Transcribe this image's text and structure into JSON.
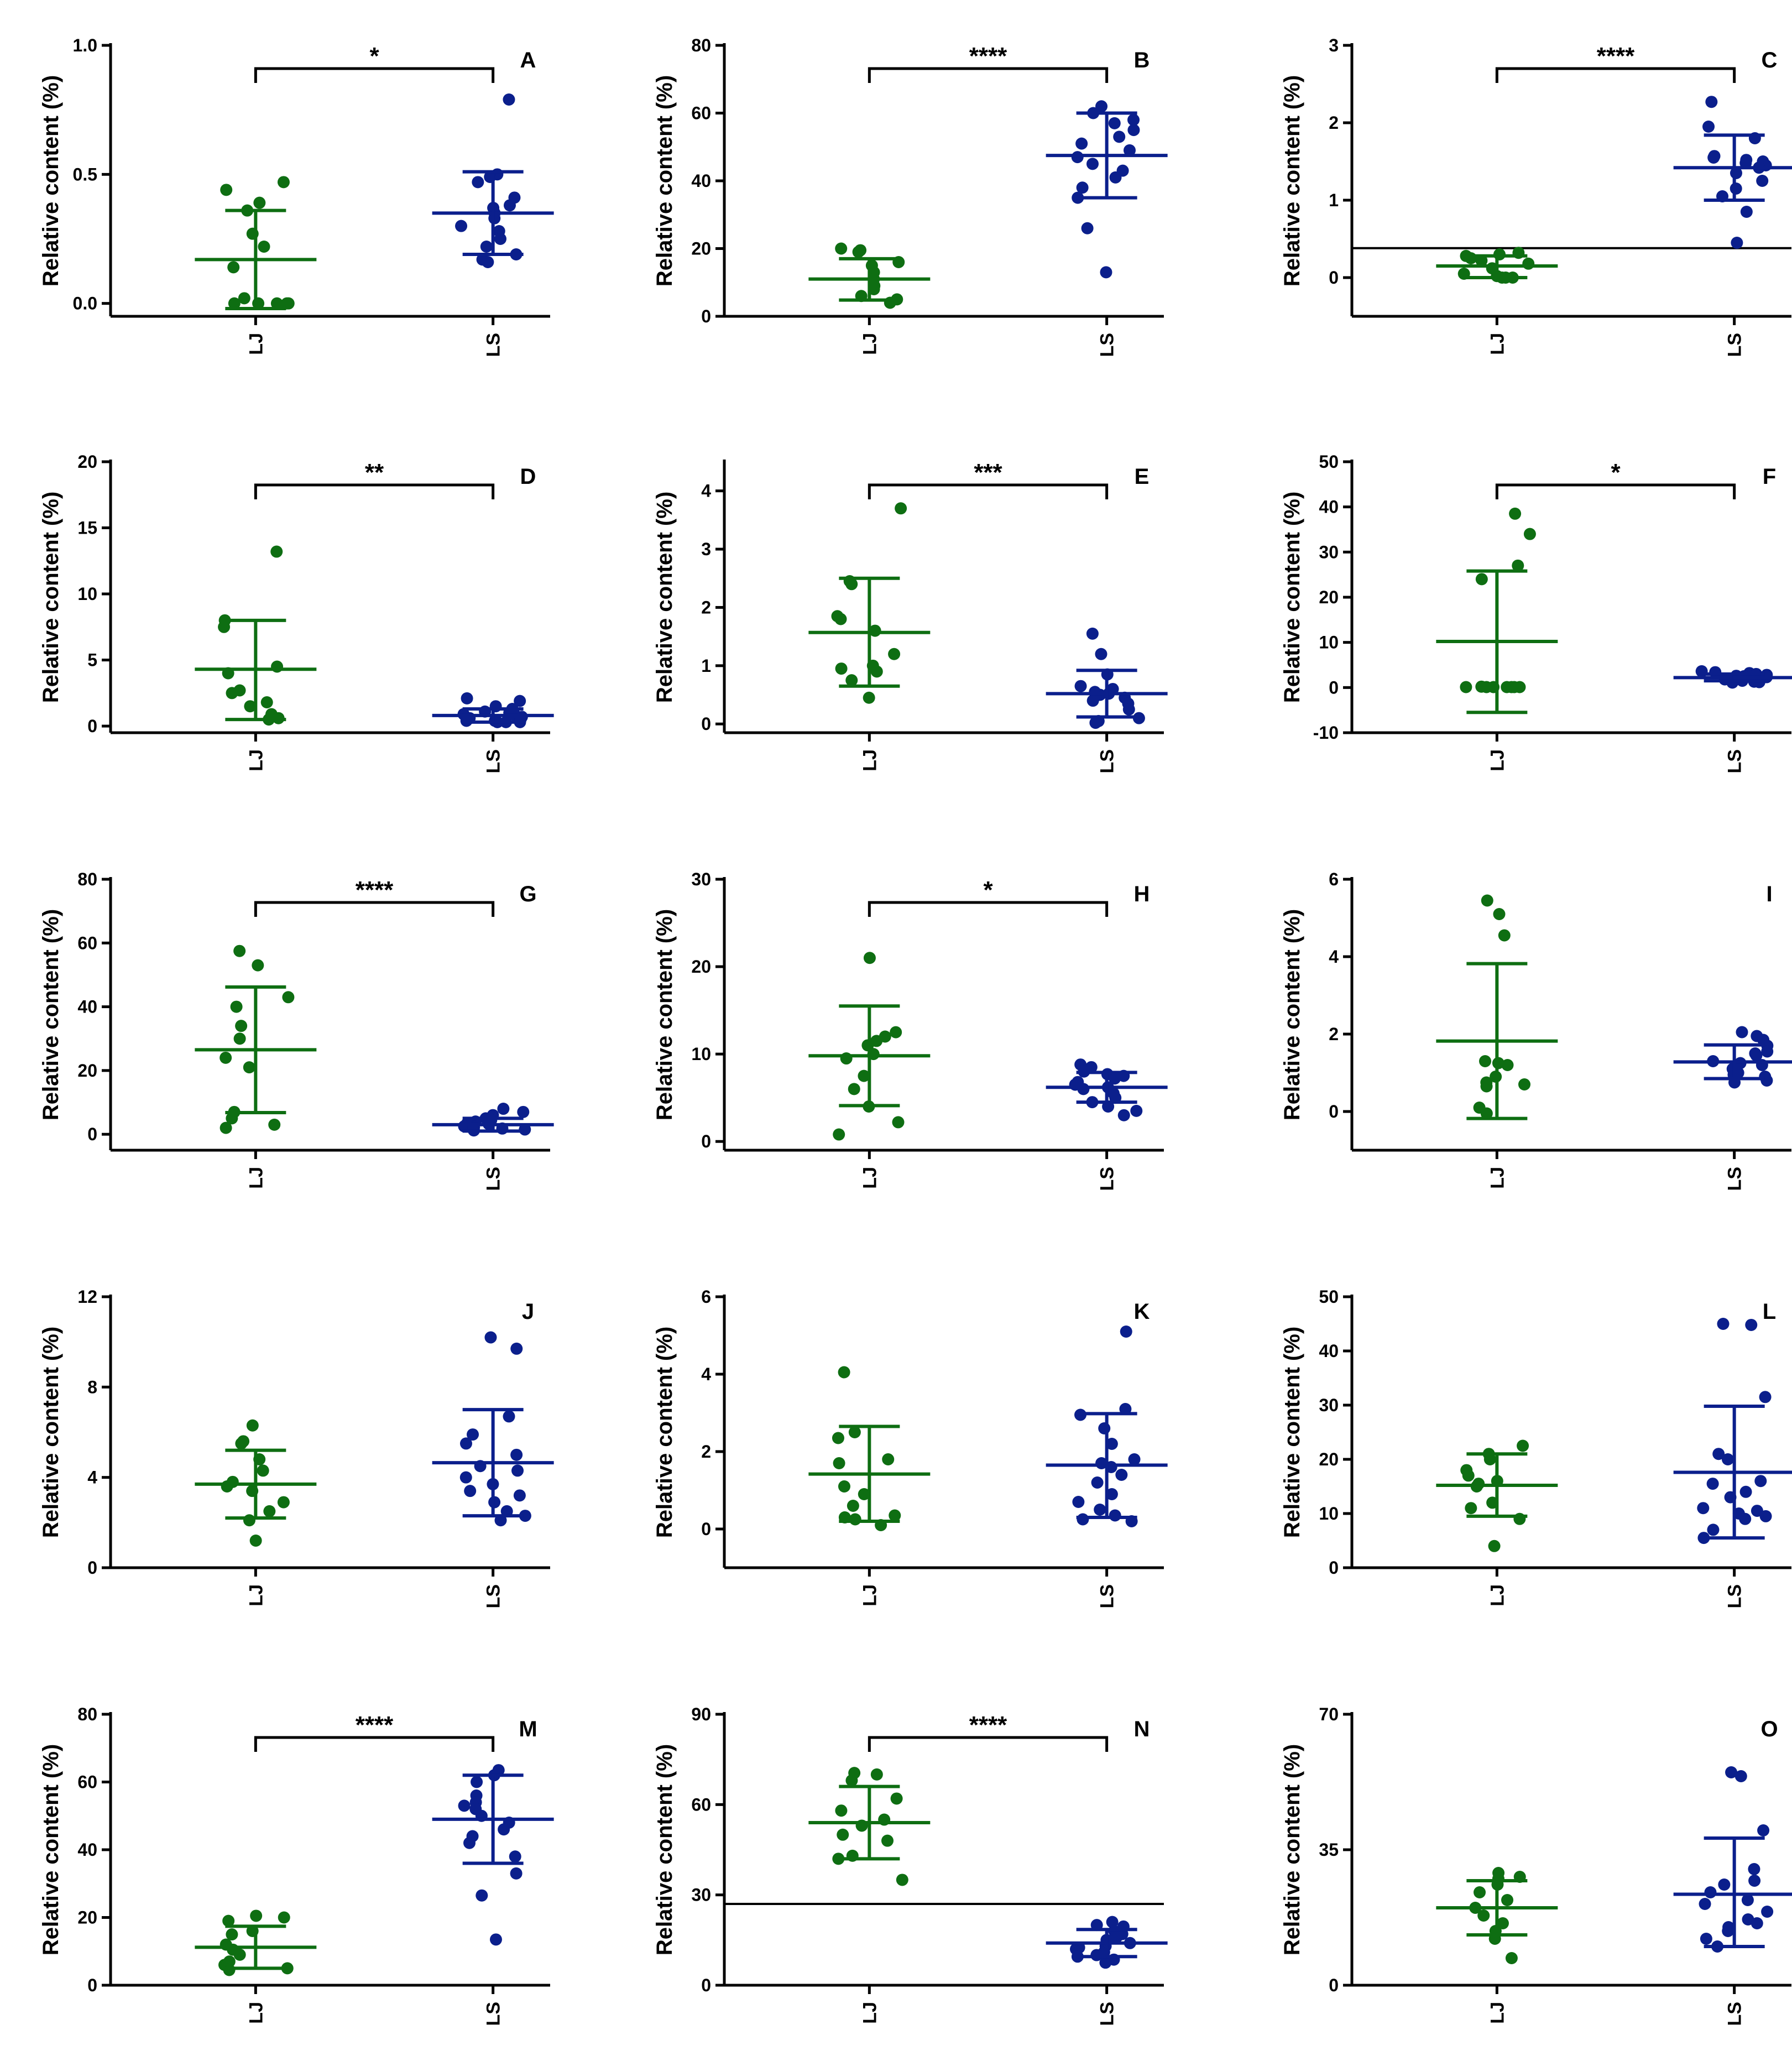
{
  "colors": {
    "LJ": "#0e6e12",
    "LS": "#0b1f8c",
    "axis": "#000000"
  },
  "chart_data": [
    {
      "panel": "A",
      "type": "scatter",
      "ylabel": "Relative content (%)",
      "ylim": [
        -0.05,
        1.0
      ],
      "yticks": [
        0.0,
        0.5,
        1.0
      ],
      "ytick_labels": [
        "0.0",
        "0.5",
        "1.0"
      ],
      "categories": [
        "LJ",
        "LS"
      ],
      "significance": "*",
      "series": [
        {
          "name": "LJ",
          "mean": 0.17,
          "sd_low": -0.02,
          "sd_high": 0.36,
          "values": [
            0.47,
            0.44,
            0.39,
            0.36,
            0.27,
            0.22,
            0.14,
            0.02,
            0.0,
            0.0,
            0.0,
            0.0,
            0.0
          ]
        },
        {
          "name": "LS",
          "mean": 0.35,
          "sd_low": 0.19,
          "sd_high": 0.51,
          "values": [
            0.79,
            0.5,
            0.49,
            0.47,
            0.41,
            0.38,
            0.37,
            0.35,
            0.33,
            0.3,
            0.28,
            0.25,
            0.22,
            0.19,
            0.17,
            0.16
          ]
        }
      ]
    },
    {
      "panel": "B",
      "type": "scatter",
      "ylabel": "Relative content (%)",
      "ylim": [
        0,
        80
      ],
      "yticks": [
        0,
        20,
        40,
        60,
        80
      ],
      "ytick_labels": [
        "0",
        "20",
        "40",
        "60",
        "80"
      ],
      "categories": [
        "LJ",
        "LS"
      ],
      "significance": "****",
      "series": [
        {
          "name": "LJ",
          "mean": 11,
          "sd_low": 4.8,
          "sd_high": 17,
          "values": [
            20,
            19.5,
            19,
            16,
            15,
            13,
            11,
            9,
            8,
            6,
            5,
            4
          ]
        },
        {
          "name": "LS",
          "mean": 47.5,
          "sd_low": 35,
          "sd_high": 60,
          "values": [
            62,
            60,
            58,
            57,
            55,
            53,
            51,
            49,
            47,
            45,
            43,
            41,
            38,
            35,
            26,
            13
          ]
        }
      ]
    },
    {
      "panel": "C",
      "type": "scatter",
      "ylabel": "Relative content (%)",
      "ylim": [
        -0.5,
        3
      ],
      "yticks": [
        0,
        1,
        2,
        3
      ],
      "ytick_labels": [
        "0",
        "1",
        "2",
        "3"
      ],
      "categories": [
        "LJ",
        "LS"
      ],
      "significance": "****",
      "reference_line": 0.38,
      "series": [
        {
          "name": "LJ",
          "mean": 0.15,
          "sd_low": 0.0,
          "sd_high": 0.28,
          "values": [
            0.32,
            0.3,
            0.28,
            0.25,
            0.22,
            0.18,
            0.12,
            0.05,
            0.02,
            0.0,
            0.0,
            0.0
          ]
        },
        {
          "name": "LS",
          "mean": 1.42,
          "sd_low": 1.0,
          "sd_high": 1.84,
          "values": [
            2.27,
            1.95,
            1.8,
            1.57,
            1.55,
            1.52,
            1.5,
            1.48,
            1.45,
            1.42,
            1.35,
            1.25,
            1.15,
            1.05,
            0.85,
            0.45
          ]
        }
      ]
    },
    {
      "panel": "D",
      "type": "scatter",
      "ylabel": "Relative content (%)",
      "ylim": [
        -0.5,
        20
      ],
      "yticks": [
        0,
        5,
        10,
        15,
        20
      ],
      "ytick_labels": [
        "0",
        "5",
        "10",
        "15",
        "20"
      ],
      "categories": [
        "LJ",
        "LS"
      ],
      "significance": "**",
      "series": [
        {
          "name": "LJ",
          "mean": 4.3,
          "sd_low": 0.5,
          "sd_high": 8,
          "values": [
            13.2,
            8,
            7.5,
            4.5,
            4,
            2.7,
            2.5,
            1.8,
            1.5,
            0.9,
            0.6,
            0.5
          ]
        },
        {
          "name": "LS",
          "mean": 0.8,
          "sd_low": 0.3,
          "sd_high": 1.3,
          "values": [
            2.1,
            1.9,
            1.5,
            1.3,
            1.1,
            1.0,
            0.9,
            0.8,
            0.7,
            0.6,
            0.5,
            0.4,
            0.4,
            0.3,
            0.3,
            0.3
          ]
        }
      ]
    },
    {
      "panel": "E",
      "type": "scatter",
      "ylabel": "Relative content (%)",
      "ylim": [
        -0.15,
        4.5
      ],
      "yticks": [
        0,
        1,
        2,
        3,
        4
      ],
      "ytick_labels": [
        "0",
        "1",
        "2",
        "3",
        "4"
      ],
      "categories": [
        "LJ",
        "LS"
      ],
      "significance": "***",
      "series": [
        {
          "name": "LJ",
          "mean": 1.57,
          "sd_low": 0.65,
          "sd_high": 2.5,
          "values": [
            3.7,
            2.45,
            2.4,
            1.85,
            1.8,
            1.6,
            1.2,
            1.0,
            0.95,
            0.9,
            0.75,
            0.45
          ]
        },
        {
          "name": "LS",
          "mean": 0.52,
          "sd_low": 0.12,
          "sd_high": 0.92,
          "values": [
            1.55,
            1.2,
            0.85,
            0.65,
            0.6,
            0.55,
            0.52,
            0.5,
            0.48,
            0.45,
            0.4,
            0.35,
            0.25,
            0.1,
            0.05,
            0.02
          ]
        }
      ]
    },
    {
      "panel": "F",
      "type": "scatter",
      "ylabel": "Relative content (%)",
      "ylim": [
        -10,
        50
      ],
      "yticks": [
        -10,
        0,
        10,
        20,
        30,
        40,
        50
      ],
      "ytick_labels": [
        "-10",
        "0",
        "10",
        "20",
        "30",
        "40",
        "50"
      ],
      "categories": [
        "LJ",
        "LS"
      ],
      "significance": "*",
      "series": [
        {
          "name": "LJ",
          "mean": 10.2,
          "sd_low": -5.5,
          "sd_high": 25.8,
          "values": [
            38.5,
            34,
            27,
            24,
            0.2,
            0.1,
            0.1,
            0.1,
            0.1,
            0.1,
            0.1,
            0.1
          ]
        },
        {
          "name": "LS",
          "mean": 2.2,
          "sd_low": 1.5,
          "sd_high": 3.0,
          "values": [
            3.6,
            3.4,
            3.2,
            3.0,
            2.8,
            2.6,
            2.5,
            2.3,
            2.2,
            2.0,
            1.8,
            1.7,
            1.5,
            1.3,
            1.2,
            1.1
          ]
        }
      ]
    },
    {
      "panel": "G",
      "type": "scatter",
      "ylabel": "Relative content (%)",
      "ylim": [
        -5,
        80
      ],
      "yticks": [
        0,
        20,
        40,
        60,
        80
      ],
      "ytick_labels": [
        "0",
        "20",
        "40",
        "60",
        "80"
      ],
      "categories": [
        "LJ",
        "LS"
      ],
      "significance": "****",
      "series": [
        {
          "name": "LJ",
          "mean": 26.5,
          "sd_low": 6.8,
          "sd_high": 46.2,
          "values": [
            57.5,
            53,
            43,
            40,
            34,
            30,
            24,
            21,
            7,
            5,
            3,
            2
          ]
        },
        {
          "name": "LS",
          "mean": 3.0,
          "sd_low": 1.0,
          "sd_high": 5.0,
          "values": [
            8,
            7,
            6,
            5,
            4.5,
            4,
            3.5,
            3.2,
            3,
            2.8,
            2.5,
            2.2,
            2,
            1.8,
            1.5,
            1.2
          ]
        }
      ]
    },
    {
      "panel": "H",
      "type": "scatter",
      "ylabel": "Relative content (%)",
      "ylim": [
        -1,
        30
      ],
      "yticks": [
        0,
        10,
        20,
        30
      ],
      "ytick_labels": [
        "0",
        "10",
        "20",
        "30"
      ],
      "categories": [
        "LJ",
        "LS"
      ],
      "significance": "*",
      "series": [
        {
          "name": "LJ",
          "mean": 9.8,
          "sd_low": 4.1,
          "sd_high": 15.5,
          "values": [
            21,
            12.5,
            12,
            11.5,
            11,
            10,
            9.5,
            7.5,
            6,
            4,
            2.2,
            0.8
          ]
        },
        {
          "name": "LS",
          "mean": 6.2,
          "sd_low": 4.5,
          "sd_high": 7.9,
          "values": [
            8.8,
            8.5,
            8,
            7.7,
            7.5,
            7.2,
            6.8,
            6.5,
            6.2,
            6,
            5.5,
            5,
            4.5,
            4,
            3.5,
            3
          ]
        }
      ]
    },
    {
      "panel": "I",
      "type": "scatter",
      "ylabel": "Relative content (%)",
      "ylim": [
        -1,
        6
      ],
      "yticks": [
        0,
        2,
        4,
        6
      ],
      "ytick_labels": [
        "0",
        "2",
        "4",
        "6"
      ],
      "categories": [
        "LJ",
        "LS"
      ],
      "series": [
        {
          "name": "LJ",
          "mean": 1.82,
          "sd_low": -0.18,
          "sd_high": 3.82,
          "values": [
            5.45,
            5.1,
            4.55,
            1.3,
            1.25,
            1.2,
            0.9,
            0.75,
            0.7,
            0.65,
            0.1,
            -0.05
          ]
        },
        {
          "name": "LS",
          "mean": 1.28,
          "sd_low": 0.85,
          "sd_high": 1.72,
          "values": [
            2.05,
            1.95,
            1.85,
            1.7,
            1.55,
            1.5,
            1.45,
            1.3,
            1.25,
            1.2,
            1.1,
            1.0,
            0.95,
            0.9,
            0.8,
            0.75
          ]
        }
      ]
    },
    {
      "panel": "J",
      "type": "scatter",
      "ylabel": "Relative content (%)",
      "ylim": [
        0,
        12
      ],
      "yticks": [
        0,
        4,
        8,
        12
      ],
      "ytick_labels": [
        "0",
        "4",
        "8",
        "12"
      ],
      "categories": [
        "LJ",
        "LS"
      ],
      "series": [
        {
          "name": "LJ",
          "mean": 3.7,
          "sd_low": 2.2,
          "sd_high": 5.2,
          "values": [
            6.3,
            5.6,
            5.5,
            4.8,
            4.3,
            3.8,
            3.6,
            3.4,
            2.9,
            2.5,
            2.1,
            1.2
          ]
        },
        {
          "name": "LS",
          "mean": 4.65,
          "sd_low": 2.3,
          "sd_high": 7.0,
          "values": [
            10.2,
            9.7,
            6.7,
            5.9,
            5.5,
            5.0,
            4.5,
            4.3,
            4.0,
            3.7,
            3.4,
            3.2,
            2.9,
            2.5,
            2.3,
            2.1
          ]
        }
      ]
    },
    {
      "panel": "K",
      "type": "scatter",
      "ylabel": "Relative content (%)",
      "ylim": [
        -1,
        6
      ],
      "yticks": [
        0,
        2,
        4,
        6
      ],
      "ytick_labels": [
        "0",
        "2",
        "4",
        "6"
      ],
      "categories": [
        "LJ",
        "LS"
      ],
      "series": [
        {
          "name": "LJ",
          "mean": 1.42,
          "sd_low": 0.2,
          "sd_high": 2.65,
          "values": [
            4.05,
            2.5,
            2.35,
            1.8,
            1.7,
            1.1,
            0.9,
            0.6,
            0.35,
            0.3,
            0.25,
            0.1
          ]
        },
        {
          "name": "LS",
          "mean": 1.65,
          "sd_low": 0.3,
          "sd_high": 2.98,
          "values": [
            5.1,
            3.1,
            2.95,
            2.6,
            2.2,
            1.8,
            1.7,
            1.6,
            1.4,
            1.2,
            0.9,
            0.7,
            0.5,
            0.35,
            0.25,
            0.2
          ]
        }
      ]
    },
    {
      "panel": "L",
      "type": "scatter",
      "ylabel": "Relative content (%)",
      "ylim": [
        0,
        50
      ],
      "yticks": [
        0,
        10,
        20,
        30,
        40,
        50
      ],
      "ytick_labels": [
        "0",
        "10",
        "20",
        "30",
        "40",
        "50"
      ],
      "categories": [
        "LJ",
        "LS"
      ],
      "series": [
        {
          "name": "LJ",
          "mean": 15.2,
          "sd_low": 9.5,
          "sd_high": 21.0,
          "values": [
            22.5,
            21,
            20,
            18,
            17,
            16,
            15.5,
            15,
            12,
            11,
            9,
            4
          ]
        },
        {
          "name": "LS",
          "mean": 17.6,
          "sd_low": 5.5,
          "sd_high": 29.8,
          "values": [
            45,
            44.8,
            31.5,
            21,
            20,
            16,
            15.5,
            14,
            13,
            11,
            10.5,
            10,
            9.5,
            9,
            7,
            5.5
          ]
        }
      ]
    },
    {
      "panel": "M",
      "type": "scatter",
      "ylabel": "Relative content (%)",
      "ylim": [
        0,
        80
      ],
      "yticks": [
        0,
        20,
        40,
        60,
        80
      ],
      "ytick_labels": [
        "0",
        "20",
        "40",
        "60",
        "80"
      ],
      "categories": [
        "LJ",
        "LS"
      ],
      "significance": "****",
      "series": [
        {
          "name": "LJ",
          "mean": 11.2,
          "sd_low": 5.0,
          "sd_high": 17.4,
          "values": [
            20.5,
            20,
            19,
            16,
            15,
            12,
            10.5,
            9,
            7,
            6,
            5,
            4.5
          ]
        },
        {
          "name": "LS",
          "mean": 49,
          "sd_low": 36,
          "sd_high": 62,
          "values": [
            63.5,
            62,
            60,
            56,
            54,
            53,
            52,
            50,
            48,
            46,
            44,
            42,
            38,
            33,
            26.5,
            13.5
          ]
        }
      ]
    },
    {
      "panel": "N",
      "type": "scatter",
      "ylabel": "Relative content (%)",
      "ylim": [
        0,
        90
      ],
      "yticks": [
        0,
        30,
        60,
        90
      ],
      "ytick_labels": [
        "0",
        "30",
        "60",
        "90"
      ],
      "categories": [
        "LJ",
        "LS"
      ],
      "significance": "****",
      "reference_line": 27,
      "series": [
        {
          "name": "LJ",
          "mean": 54,
          "sd_low": 42,
          "sd_high": 66,
          "values": [
            70.5,
            70,
            68,
            62,
            58,
            55,
            53,
            50,
            48,
            43,
            42,
            35
          ]
        },
        {
          "name": "LS",
          "mean": 14,
          "sd_low": 9.5,
          "sd_high": 18.5,
          "values": [
            21,
            20,
            19.5,
            18,
            17,
            16,
            15,
            14,
            13,
            12.5,
            12,
            11,
            10,
            9.5,
            8.5,
            7.5
          ]
        }
      ]
    },
    {
      "panel": "O",
      "type": "scatter",
      "ylabel": "Relative content (%)",
      "ylim": [
        0,
        70
      ],
      "yticks": [
        0,
        35,
        70
      ],
      "ytick_labels": [
        "0",
        "35",
        "70"
      ],
      "categories": [
        "LJ",
        "LS"
      ],
      "series": [
        {
          "name": "LJ",
          "mean": 20,
          "sd_low": 13,
          "sd_high": 27,
          "values": [
            29,
            28,
            27.5,
            26,
            24,
            22,
            20,
            18,
            16,
            14,
            12,
            7
          ]
        },
        {
          "name": "LS",
          "mean": 23.5,
          "sd_low": 10,
          "sd_high": 38,
          "values": [
            55,
            54,
            40,
            30,
            27,
            26,
            24,
            22,
            21,
            19,
            17,
            16,
            15,
            14,
            12,
            10
          ]
        }
      ]
    }
  ]
}
